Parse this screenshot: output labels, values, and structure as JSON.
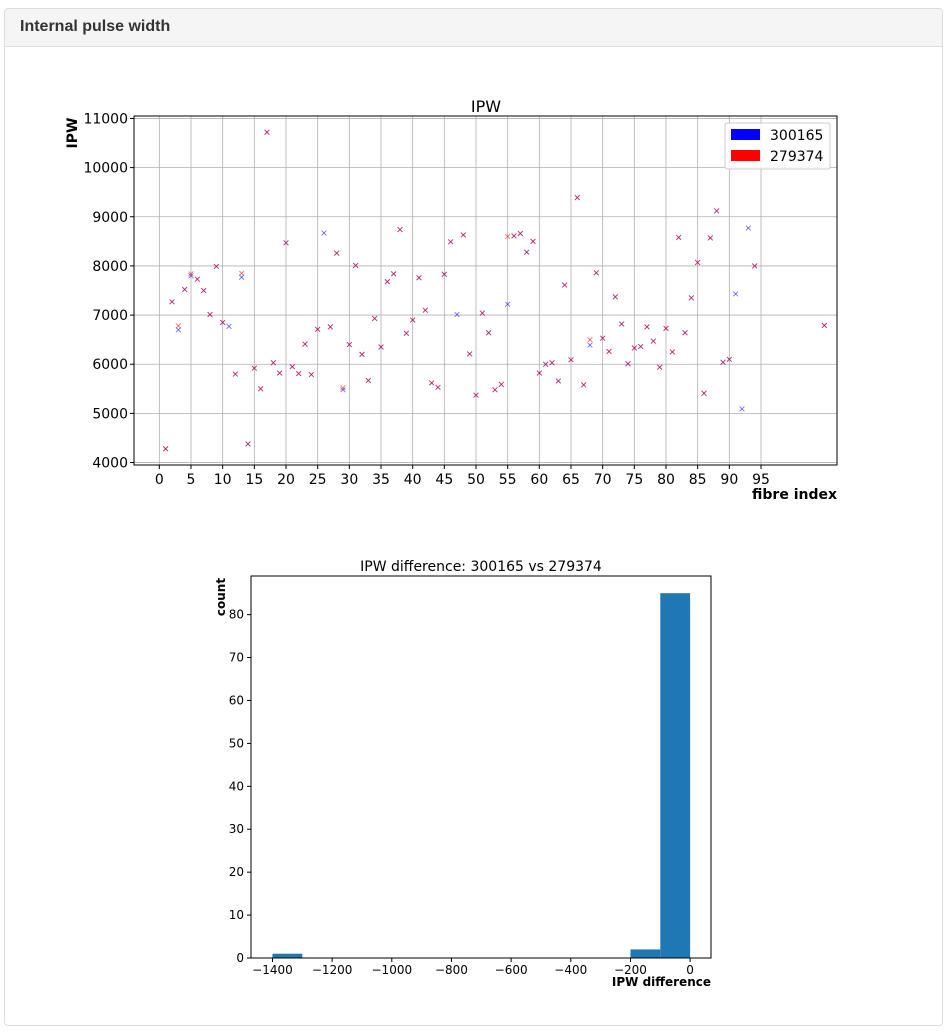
{
  "panel": {
    "title": "Internal pulse width"
  },
  "chart_data": [
    {
      "type": "scatter",
      "title": "IPW",
      "xlabel": "fibre index",
      "ylabel": "IPW",
      "xlim": [
        -4,
        107
      ],
      "ylim": [
        3950,
        11050
      ],
      "xticks": [
        0,
        5,
        10,
        15,
        20,
        25,
        30,
        35,
        40,
        45,
        50,
        55,
        60,
        65,
        70,
        75,
        80,
        85,
        90,
        95
      ],
      "yticks": [
        4000,
        5000,
        6000,
        7000,
        8000,
        9000,
        10000,
        11000
      ],
      "grid": true,
      "legend": "top-right",
      "marker": "x",
      "colors": {
        "300165": "#0000ff",
        "279374": "#ff0000"
      },
      "series": [
        {
          "name": "300165",
          "points": [
            [
              1,
              4280
            ],
            [
              2,
              7270
            ],
            [
              3,
              6700
            ],
            [
              4,
              7520
            ],
            [
              5,
              7800
            ],
            [
              6,
              7730
            ],
            [
              7,
              7500
            ],
            [
              8,
              7010
            ],
            [
              9,
              7990
            ],
            [
              10,
              6850
            ],
            [
              11,
              6770
            ],
            [
              12,
              5800
            ],
            [
              13,
              7770
            ],
            [
              14,
              4380
            ],
            [
              15,
              5920
            ],
            [
              16,
              5500
            ],
            [
              17,
              10720
            ],
            [
              18,
              6030
            ],
            [
              19,
              5820
            ],
            [
              20,
              8470
            ],
            [
              21,
              5950
            ],
            [
              22,
              5810
            ],
            [
              23,
              6410
            ],
            [
              24,
              5790
            ],
            [
              25,
              6710
            ],
            [
              26,
              8670
            ],
            [
              27,
              6760
            ],
            [
              28,
              8260
            ],
            [
              29,
              5480
            ],
            [
              30,
              6400
            ],
            [
              31,
              8010
            ],
            [
              32,
              6200
            ],
            [
              33,
              5670
            ],
            [
              34,
              6930
            ],
            [
              35,
              6350
            ],
            [
              36,
              7680
            ],
            [
              37,
              7840
            ],
            [
              38,
              8740
            ],
            [
              39,
              6630
            ],
            [
              40,
              6900
            ],
            [
              41,
              7760
            ],
            [
              42,
              7100
            ],
            [
              43,
              5620
            ],
            [
              44,
              5530
            ],
            [
              45,
              7830
            ],
            [
              46,
              8490
            ],
            [
              47,
              7010
            ],
            [
              48,
              8630
            ],
            [
              49,
              6210
            ],
            [
              50,
              5370
            ],
            [
              51,
              7040
            ],
            [
              52,
              6640
            ],
            [
              53,
              5480
            ],
            [
              54,
              5590
            ],
            [
              55,
              7220
            ],
            [
              56,
              8610
            ],
            [
              57,
              8660
            ],
            [
              58,
              8280
            ],
            [
              59,
              8500
            ],
            [
              60,
              5820
            ],
            [
              61,
              6000
            ],
            [
              62,
              6030
            ],
            [
              63,
              5660
            ],
            [
              64,
              7610
            ],
            [
              65,
              6090
            ],
            [
              66,
              9390
            ],
            [
              67,
              5580
            ],
            [
              68,
              6390
            ],
            [
              69,
              7860
            ],
            [
              70,
              6530
            ],
            [
              71,
              6260
            ],
            [
              72,
              7370
            ],
            [
              73,
              6820
            ],
            [
              74,
              6010
            ],
            [
              75,
              6330
            ],
            [
              76,
              6360
            ],
            [
              77,
              6760
            ],
            [
              78,
              6470
            ],
            [
              79,
              5940
            ],
            [
              80,
              6730
            ],
            [
              81,
              6250
            ],
            [
              82,
              8580
            ],
            [
              83,
              6640
            ],
            [
              84,
              7350
            ],
            [
              85,
              8070
            ],
            [
              86,
              5410
            ],
            [
              87,
              8570
            ],
            [
              88,
              9120
            ],
            [
              89,
              6040
            ],
            [
              90,
              6100
            ],
            [
              91,
              7430
            ],
            [
              92,
              5090
            ],
            [
              93,
              8770
            ],
            [
              94,
              8000
            ],
            [
              105,
              6790
            ]
          ]
        },
        {
          "name": "279374",
          "points": [
            [
              1,
              4280
            ],
            [
              2,
              7270
            ],
            [
              3,
              6780
            ],
            [
              4,
              7520
            ],
            [
              5,
              7840
            ],
            [
              6,
              7730
            ],
            [
              7,
              7500
            ],
            [
              8,
              7010
            ],
            [
              9,
              7990
            ],
            [
              10,
              6850
            ],
            [
              12,
              5800
            ],
            [
              13,
              7850
            ],
            [
              14,
              4380
            ],
            [
              15,
              5920
            ],
            [
              16,
              5500
            ],
            [
              17,
              10720
            ],
            [
              18,
              6030
            ],
            [
              19,
              5820
            ],
            [
              20,
              8470
            ],
            [
              21,
              5950
            ],
            [
              22,
              5810
            ],
            [
              23,
              6410
            ],
            [
              24,
              5790
            ],
            [
              25,
              6710
            ],
            [
              27,
              6760
            ],
            [
              28,
              8260
            ],
            [
              29,
              5520
            ],
            [
              30,
              6400
            ],
            [
              31,
              8010
            ],
            [
              32,
              6200
            ],
            [
              33,
              5670
            ],
            [
              34,
              6930
            ],
            [
              35,
              6350
            ],
            [
              36,
              7680
            ],
            [
              37,
              7840
            ],
            [
              38,
              8740
            ],
            [
              39,
              6630
            ],
            [
              40,
              6900
            ],
            [
              41,
              7760
            ],
            [
              42,
              7100
            ],
            [
              43,
              5620
            ],
            [
              44,
              5530
            ],
            [
              45,
              7830
            ],
            [
              46,
              8490
            ],
            [
              48,
              8630
            ],
            [
              49,
              6210
            ],
            [
              50,
              5370
            ],
            [
              51,
              7040
            ],
            [
              52,
              6640
            ],
            [
              53,
              5480
            ],
            [
              54,
              5590
            ],
            [
              55,
              8600
            ],
            [
              56,
              8610
            ],
            [
              57,
              8660
            ],
            [
              58,
              8280
            ],
            [
              59,
              8500
            ],
            [
              60,
              5820
            ],
            [
              61,
              6000
            ],
            [
              62,
              6030
            ],
            [
              63,
              5660
            ],
            [
              64,
              7610
            ],
            [
              65,
              6090
            ],
            [
              66,
              9390
            ],
            [
              67,
              5580
            ],
            [
              68,
              6500
            ],
            [
              69,
              7860
            ],
            [
              70,
              6530
            ],
            [
              71,
              6260
            ],
            [
              72,
              7370
            ],
            [
              73,
              6820
            ],
            [
              74,
              6010
            ],
            [
              75,
              6330
            ],
            [
              76,
              6360
            ],
            [
              77,
              6760
            ],
            [
              78,
              6470
            ],
            [
              79,
              5940
            ],
            [
              80,
              6730
            ],
            [
              81,
              6250
            ],
            [
              82,
              8580
            ],
            [
              83,
              6640
            ],
            [
              84,
              7350
            ],
            [
              85,
              8070
            ],
            [
              86,
              5410
            ],
            [
              87,
              8570
            ],
            [
              88,
              9120
            ],
            [
              89,
              6040
            ],
            [
              90,
              6100
            ],
            [
              94,
              8000
            ],
            [
              105,
              6790
            ]
          ]
        }
      ]
    },
    {
      "type": "bar",
      "title": "IPW difference: 300165 vs 279374",
      "xlabel": "IPW difference",
      "ylabel": "count",
      "xlim": [
        -1472,
        70
      ],
      "ylim": [
        0,
        89
      ],
      "xticks": [
        -1400,
        -1200,
        -1000,
        -800,
        -600,
        -400,
        -200,
        0
      ],
      "xtick_labels": [
        "−1400",
        "−1200",
        "−1000",
        "−800",
        "−600",
        "−400",
        "−200",
        "0"
      ],
      "yticks": [
        0,
        10,
        20,
        30,
        40,
        50,
        60,
        70,
        80
      ],
      "color": "#1f77b4",
      "bins": [
        {
          "x0": -1400,
          "x1": -1300,
          "count": 1
        },
        {
          "x0": -200,
          "x1": -100,
          "count": 2
        },
        {
          "x0": -100,
          "x1": 0,
          "count": 85
        }
      ]
    }
  ]
}
